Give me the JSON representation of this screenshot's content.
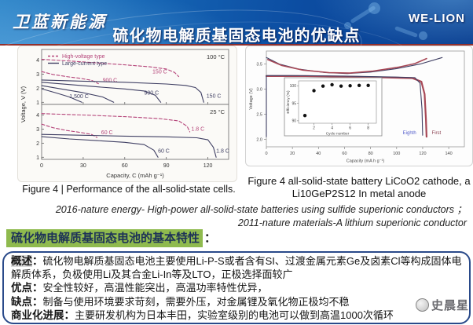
{
  "header": {
    "logo": "卫蓝新能源",
    "title": "硫化物电解质基固态电池的优缺点",
    "brand": "WE-LION"
  },
  "figures": {
    "left_caption": "Figure 4 | Performance of the all-solid-state cells.",
    "right_caption_line1": "Figure 4 all-solid-state battery LiCoO2 cathode, a",
    "right_caption_line2": "Li10GeP2S12 In metal anode"
  },
  "references": {
    "line1": "2016-nature energy- High-power all-solid-state batteries using sulfide superionic conductors ；",
    "line2": "2011-nature materials-A lithium superionic conductor"
  },
  "section": {
    "heading": "硫化物电解质基固态电池的基本特性",
    "colon": "："
  },
  "details": {
    "colon": "：",
    "overview_label": "概述",
    "overview_text": "硫化物电解质基固态电池主要使用Li-P-S或者含有SI、过渡金属元素Ge及卤素Cl等构成固体电解质体系，负极使用Li及其合金Li-In等及LTO，正极选择面较广",
    "pros_label": "优点",
    "pros_text": "安全性较好，高温性能突出，高温功率特性优异，",
    "cons_label": "缺点",
    "cons_text": "制备与使用环境要求苛刻，需要外压，对金属锂及氧化物正极均不稳",
    "progress_label": "商业化进展",
    "progress_text": "主要研发机构为日本丰田，实验室级别的电池可以做到高温1000次循环"
  },
  "watermark": {
    "name": "史晨星"
  },
  "colors": {
    "header_blue": "#0c4da2",
    "divider_red": "#93312e",
    "highlight_green": "#8fba4e",
    "box_border_blue": "#2a4a8a",
    "label_highlight_gray": "#d9d9d9",
    "chart_pink": "#b5457a",
    "chart_navy": "#3f3f63",
    "chart_red": "#a84856"
  },
  "chart_data": [
    {
      "id": "all-solid-state-cells-performance",
      "type": "line",
      "legend": [
        {
          "label": "High-voltage type",
          "style": "dashed",
          "color": "#b5457a"
        },
        {
          "label": "Large-current type",
          "style": "solid",
          "color": "#3f3f63"
        }
      ],
      "xlabel": "Capacity, C (mAh g⁻¹)",
      "ylabel": "Voltage, V (V)",
      "xlim": [
        0,
        135
      ],
      "xticks": [
        0,
        30,
        60,
        90,
        120
      ],
      "panels": [
        {
          "label": "100 °C",
          "ylim": [
            0.85,
            4.75
          ],
          "yticks": [
            1,
            2,
            3,
            4
          ],
          "series": [
            {
              "name": "high-voltage-150C",
              "style": "dashed",
              "color": "#b5457a",
              "points": [
                [
                  0,
                  4.05
                ],
                [
                  20,
                  3.93
                ],
                [
                  40,
                  3.8
                ],
                [
                  60,
                  3.66
                ],
                [
                  78,
                  3.52
                ],
                [
                  90,
                  3.36
                ],
                [
                  96,
                  3.12
                ],
                [
                  99,
                  2.82
                ]
              ],
              "label": "150 C",
              "label_at": [
                80,
                3.05
              ]
            },
            {
              "name": "high-voltage-900C",
              "style": "dashed",
              "color": "#b5457a",
              "points": [
                [
                  0,
                  3.18
                ],
                [
                  8,
                  2.98
                ],
                [
                  18,
                  2.82
                ],
                [
                  28,
                  2.7
                ],
                [
                  36,
                  2.56
                ],
                [
                  41,
                  2.32
                ]
              ],
              "label": "900 C",
              "label_at": [
                44,
                2.45
              ]
            },
            {
              "name": "large-current-150C",
              "style": "solid",
              "color": "#3f3f63",
              "points": [
                [
                  0,
                  2.58
                ],
                [
                  30,
                  2.5
                ],
                [
                  60,
                  2.42
                ],
                [
                  90,
                  2.3
                ],
                [
                  104,
                  2.2
                ],
                [
                  111,
                  2.05
                ],
                [
                  115,
                  1.7
                ],
                [
                  117,
                  1.0
                ]
              ],
              "label": "150 C",
              "label_at": [
                119,
                1.32
              ]
            },
            {
              "name": "large-current-900C",
              "style": "solid",
              "color": "#3f3f63",
              "points": [
                [
                  0,
                  2.42
                ],
                [
                  20,
                  2.26
                ],
                [
                  40,
                  2.1
                ],
                [
                  60,
                  1.95
                ],
                [
                  74,
                  1.8
                ],
                [
                  82,
                  1.5
                ],
                [
                  86,
                  1.0
                ]
              ],
              "label": "900 C",
              "label_at": [
                74,
                1.55
              ]
            },
            {
              "name": "large-current-1500C",
              "style": "solid",
              "color": "#3f3f63",
              "points": [
                [
                  0,
                  2.18
                ],
                [
                  15,
                  1.93
                ],
                [
                  30,
                  1.68
                ],
                [
                  44,
                  1.38
                ],
                [
                  52,
                  1.0
                ]
              ],
              "label": "1,500 C",
              "label_at": [
                20,
                1.3
              ]
            },
            {
              "name": "large-current-extra",
              "style": "solid",
              "color": "#3f3f63",
              "points": [
                [
                  0,
                  1.96
                ],
                [
                  10,
                  1.68
                ],
                [
                  20,
                  1.38
                ],
                [
                  29,
                  1.0
                ]
              ],
              "label": "",
              "label_at": [
                0,
                0
              ]
            }
          ]
        },
        {
          "label": "25 °C",
          "ylim": [
            0.85,
            4.75
          ],
          "yticks": [
            1,
            2,
            3,
            4
          ],
          "series": [
            {
              "name": "high-voltage-1.8C",
              "style": "dashed",
              "color": "#b5457a",
              "points": [
                [
                  0,
                  4.1
                ],
                [
                  30,
                  4.0
                ],
                [
                  60,
                  3.88
                ],
                [
                  85,
                  3.74
                ],
                [
                  99,
                  3.58
                ],
                [
                  105,
                  3.2
                ],
                [
                  107,
                  2.8
                ]
              ],
              "label": "1.8 C",
              "label_at": [
                108,
                2.88
              ]
            },
            {
              "name": "high-voltage-60C",
              "style": "dashed",
              "color": "#b5457a",
              "points": [
                [
                  0,
                  3.35
                ],
                [
                  8,
                  3.1
                ],
                [
                  18,
                  2.9
                ],
                [
                  28,
                  2.76
                ],
                [
                  36,
                  2.62
                ],
                [
                  40,
                  2.4
                ]
              ],
              "label": "60 C",
              "label_at": [
                43,
                2.62
              ]
            },
            {
              "name": "large-current-1.8C",
              "style": "solid",
              "color": "#3f3f63",
              "points": [
                [
                  0,
                  2.62
                ],
                [
                  30,
                  2.56
                ],
                [
                  60,
                  2.5
                ],
                [
                  90,
                  2.45
                ],
                [
                  112,
                  2.38
                ],
                [
                  120,
                  2.24
                ],
                [
                  124,
                  1.7
                ],
                [
                  126,
                  1.0
                ]
              ],
              "label": "1.8 C",
              "label_at": [
                126,
                1.32
              ]
            },
            {
              "name": "large-current-60C",
              "style": "solid",
              "color": "#3f3f63",
              "points": [
                [
                  0,
                  2.46
                ],
                [
                  20,
                  2.3
                ],
                [
                  40,
                  2.18
                ],
                [
                  60,
                  2.06
                ],
                [
                  74,
                  1.9
                ],
                [
                  81,
                  1.5
                ],
                [
                  84,
                  1.0
                ]
              ],
              "label": "60 C",
              "label_at": [
                84,
                1.32
              ]
            }
          ]
        }
      ]
    },
    {
      "id": "licoo2-cell-cycling",
      "type": "line",
      "xlabel": "Capacity (mA h g⁻¹)",
      "ylabel": "Voltage (V)",
      "xlim": [
        0,
        152
      ],
      "xticks": [
        0,
        20,
        40,
        60,
        80,
        100,
        120,
        140
      ],
      "ylim": [
        1.85,
        3.76
      ],
      "yticks": [
        2.0,
        2.5,
        3.0,
        3.5
      ],
      "series": [
        {
          "name": "charge-first",
          "color": "#3f3f63",
          "width": 1.1,
          "points": [
            [
              0,
              3.63
            ],
            [
              10,
              3.5
            ],
            [
              25,
              3.4
            ],
            [
              45,
              3.33
            ],
            [
              62,
              3.31
            ],
            [
              80,
              3.34
            ],
            [
              100,
              3.41
            ],
            [
              118,
              3.5
            ],
            [
              135,
              3.63
            ]
          ]
        },
        {
          "name": "charge-eighth",
          "color": "#a84856",
          "width": 1.6,
          "points": [
            [
              1,
              3.59
            ],
            [
              12,
              3.47
            ],
            [
              28,
              3.38
            ],
            [
              48,
              3.33
            ],
            [
              64,
              3.32
            ],
            [
              82,
              3.36
            ],
            [
              102,
              3.44
            ],
            [
              114,
              3.51
            ],
            [
              123,
              3.61
            ]
          ]
        },
        {
          "name": "discharge-eighth",
          "color": "#a84856",
          "width": 2.2,
          "points": [
            [
              0,
              3.26
            ],
            [
              30,
              3.26
            ],
            [
              80,
              3.24
            ],
            [
              112,
              3.22
            ],
            [
              119,
              3.15
            ],
            [
              121.5,
              2.9
            ],
            [
              122.5,
              2.4
            ],
            [
              123,
              2.05
            ]
          ]
        },
        {
          "name": "discharge-first",
          "color": "#3f3f63",
          "width": 1.1,
          "points": [
            [
              0,
              2.05
            ],
            [
              0,
              3.27
            ],
            [
              20,
              3.27
            ],
            [
              60,
              3.26
            ],
            [
              100,
              3.24
            ],
            [
              114,
              3.23
            ],
            [
              118,
              3.12
            ],
            [
              119.5,
              2.6
            ],
            [
              120,
              2.08
            ]
          ]
        }
      ],
      "annotations": [
        {
          "text": "Eighth",
          "color": "#5560cc",
          "at": [
            115,
            2.1
          ],
          "anchor": "end"
        },
        {
          "text": "First",
          "color": "#8a4050",
          "at": [
            127,
            2.1
          ],
          "anchor": "start"
        }
      ],
      "inset": {
        "xlabel": "Cycle number",
        "ylabel": "Efficiency (%)",
        "xlim": [
          0.3,
          8.9
        ],
        "xticks": [
          2,
          4,
          6,
          8
        ],
        "ylim": [
          89.3,
          101.4
        ],
        "yticks": [
          90,
          95,
          100
        ],
        "points": [
          [
            1,
            91.5
          ],
          [
            2,
            98.6
          ],
          [
            3,
            99.9
          ],
          [
            4,
            100.3
          ],
          [
            5,
            99.9
          ],
          [
            6,
            100.0
          ],
          [
            7,
            100.1
          ],
          [
            8,
            100.1
          ]
        ]
      }
    }
  ]
}
